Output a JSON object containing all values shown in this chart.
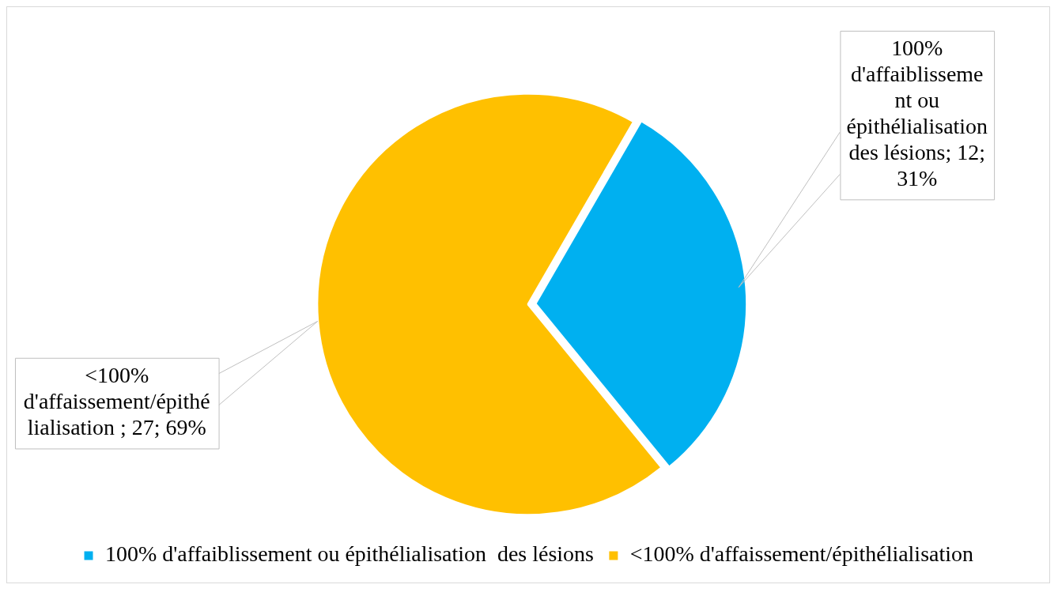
{
  "chart_data": {
    "type": "pie",
    "categories": [
      "100% d'affaiblissement ou épithélialisation  des lésions",
      "<100% d'affaissement/épithélialisation"
    ],
    "values": [
      12,
      27
    ],
    "colors": [
      "#00b0f0",
      "#ffc000"
    ],
    "value_labels": [
      "100% d'affaiblissement ou épithélialisation des lésions; 12; 31%",
      "<100% d'affaissement/épithélialisation ; 27; 69%"
    ],
    "legend": "bottom"
  }
}
